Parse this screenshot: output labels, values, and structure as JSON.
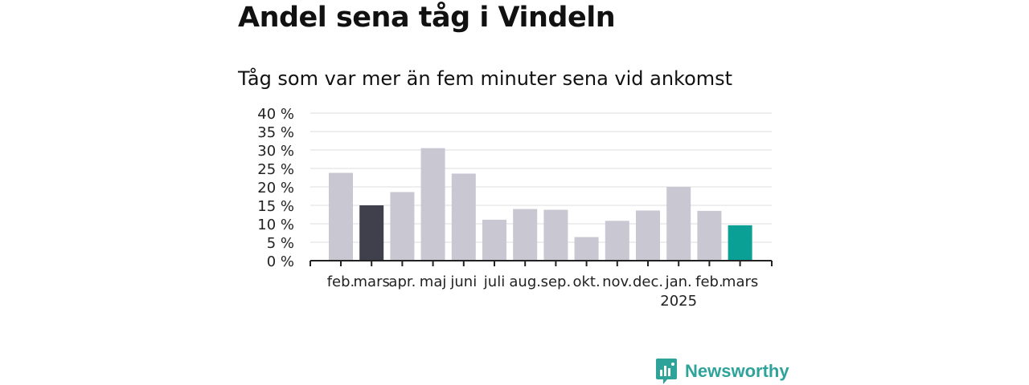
{
  "title": "Andel sena tåg i Vindeln",
  "subtitle": "Tåg som var mer än fem minuter sena vid ankomst",
  "brand": {
    "name": "Newsworthy",
    "icon": "newsworthy-logo-icon"
  },
  "colors": {
    "bar": "#c8c7d2",
    "highlight_previous": "#403f4c",
    "highlight_current": "#0aa096",
    "grid": "#dddddd",
    "axis": "#222222"
  },
  "chart_data": {
    "type": "bar",
    "categories": [
      "feb.",
      "mars",
      "apr.",
      "maj",
      "juni",
      "juli",
      "aug.",
      "sep.",
      "okt.",
      "nov.",
      "dec.",
      "jan.",
      "feb.",
      "mars"
    ],
    "category_sublabels": [
      "",
      "",
      "",
      "",
      "",
      "",
      "",
      "",
      "",
      "",
      "",
      "2025",
      "",
      ""
    ],
    "values": [
      23.8,
      15.0,
      18.6,
      30.5,
      23.6,
      11.1,
      14.0,
      13.8,
      6.4,
      10.8,
      13.6,
      20.0,
      13.5,
      9.6
    ],
    "highlight": [
      null,
      "previous",
      null,
      null,
      null,
      null,
      null,
      null,
      null,
      null,
      null,
      null,
      null,
      "current"
    ],
    "yticks": [
      0,
      5,
      10,
      15,
      20,
      25,
      30,
      35,
      40
    ],
    "ytick_labels": [
      "0 %",
      "5 %",
      "10 %",
      "15 %",
      "20 %",
      "25 %",
      "30 %",
      "35 %",
      "40 %"
    ],
    "ylim": [
      0,
      40
    ],
    "grid": true,
    "xlabel": "",
    "ylabel": ""
  }
}
